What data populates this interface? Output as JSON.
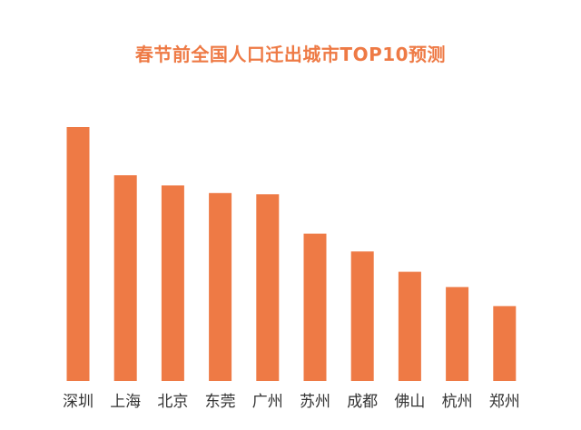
{
  "colors": {
    "bar": "#ee7a45",
    "title": "#ee7a45",
    "label": "#333333"
  },
  "chart_data": {
    "type": "bar",
    "title": "春节前全国人口迁出城市TOP10预测",
    "xlabel": "",
    "ylabel": "",
    "categories": [
      "深圳",
      "上海",
      "北京",
      "东莞",
      "广州",
      "苏州",
      "成都",
      "佛山",
      "杭州",
      "郑州"
    ],
    "values": [
      100,
      81,
      77,
      74,
      73.5,
      58,
      51,
      43,
      37,
      29.5
    ],
    "ylim": [
      0,
      100
    ],
    "grid": false,
    "legend": "none"
  }
}
